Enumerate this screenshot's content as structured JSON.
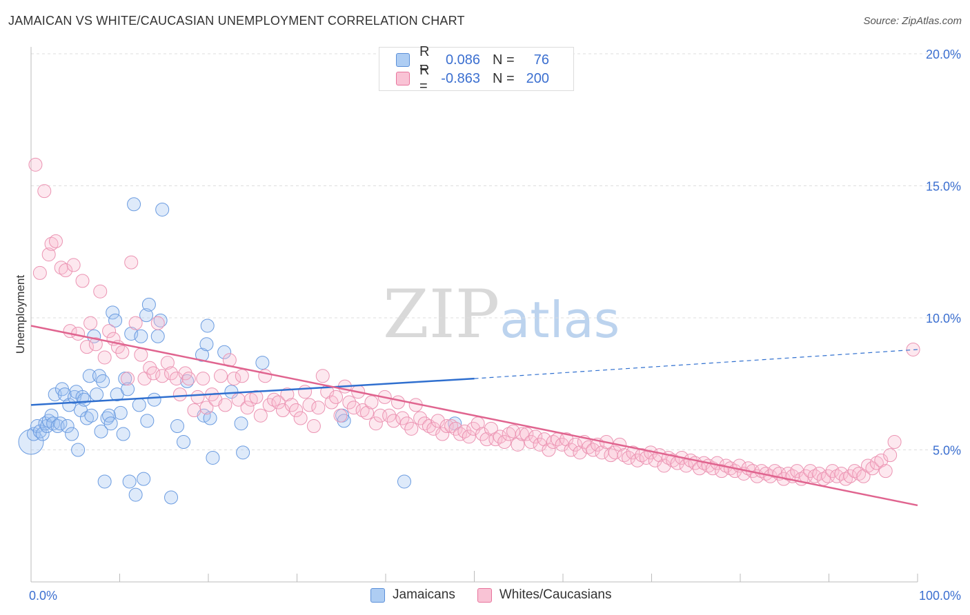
{
  "title": "JAMAICAN VS WHITE/CAUCASIAN UNEMPLOYMENT CORRELATION CHART",
  "source": "Source: ZipAtlas.com",
  "watermark": {
    "zip": "ZIP",
    "atlas": "atlas"
  },
  "legend": {
    "rows": [
      {
        "r_label": "R =",
        "r_value": "0.086",
        "n_label": "N =",
        "n_value": "76",
        "color": "#9ec3f2"
      },
      {
        "r_label": "R =",
        "r_value": "-0.863",
        "n_label": "N =",
        "n_value": "200",
        "color": "#f6b6cb"
      }
    ]
  },
  "bottom_legend": [
    {
      "label": "Jamaicans",
      "color": "#aecdf3"
    },
    {
      "label": "Whites/Caucasians",
      "color": "#f9c3d5"
    }
  ],
  "chart_data": {
    "type": "scatter",
    "title": "JAMAICAN VS WHITE/CAUCASIAN UNEMPLOYMENT CORRELATION CHART",
    "xlabel": "",
    "ylabel": "Unemployment",
    "xlim": [
      0,
      100
    ],
    "ylim": [
      0,
      21
    ],
    "x_tick_labels": [
      "0.0%",
      "100.0%"
    ],
    "y_ticks": [
      5,
      10,
      15,
      20
    ],
    "y_tick_labels": [
      "5.0%",
      "10.0%",
      "15.0%",
      "20.0%"
    ],
    "grid": true,
    "colors": {
      "jamaicans": "#4a86d8",
      "whites": "#e8739c"
    },
    "series": [
      {
        "name": "Jamaicans",
        "trend": {
          "x0": 0,
          "y0": 6.7,
          "x1": 50,
          "y1": 7.7,
          "dashed_to_x": 100,
          "dashed_to_y": 8.8
        },
        "points": [
          [
            0,
            5.3
          ],
          [
            0.3,
            5.6
          ],
          [
            0.7,
            5.9
          ],
          [
            1.0,
            5.7
          ],
          [
            1.3,
            5.6
          ],
          [
            1.6,
            6.0
          ],
          [
            1.8,
            5.9
          ],
          [
            2.0,
            6.1
          ],
          [
            2.3,
            6.3
          ],
          [
            2.5,
            6.0
          ],
          [
            2.7,
            7.1
          ],
          [
            3.0,
            5.9
          ],
          [
            3.3,
            6.0
          ],
          [
            3.5,
            7.3
          ],
          [
            3.8,
            7.1
          ],
          [
            4.1,
            5.9
          ],
          [
            4.3,
            6.7
          ],
          [
            4.6,
            5.6
          ],
          [
            4.9,
            7.0
          ],
          [
            5.1,
            7.2
          ],
          [
            5.3,
            5.0
          ],
          [
            5.6,
            6.5
          ],
          [
            5.8,
            7.0
          ],
          [
            6.0,
            6.9
          ],
          [
            6.3,
            6.2
          ],
          [
            6.6,
            7.8
          ],
          [
            6.8,
            6.3
          ],
          [
            7.1,
            9.3
          ],
          [
            7.4,
            7.1
          ],
          [
            7.7,
            7.8
          ],
          [
            7.9,
            5.7
          ],
          [
            8.1,
            7.6
          ],
          [
            8.3,
            3.8
          ],
          [
            8.6,
            6.2
          ],
          [
            8.8,
            6.3
          ],
          [
            9.0,
            6.0
          ],
          [
            9.2,
            10.2
          ],
          [
            9.5,
            9.9
          ],
          [
            9.7,
            7.1
          ],
          [
            10.1,
            6.4
          ],
          [
            10.4,
            5.6
          ],
          [
            10.6,
            7.7
          ],
          [
            10.9,
            7.3
          ],
          [
            11.1,
            3.8
          ],
          [
            11.3,
            9.4
          ],
          [
            11.6,
            14.3
          ],
          [
            11.8,
            3.3
          ],
          [
            12.2,
            6.7
          ],
          [
            12.4,
            9.3
          ],
          [
            12.7,
            3.9
          ],
          [
            13.1,
            6.1
          ],
          [
            13.0,
            10.1
          ],
          [
            13.3,
            10.5
          ],
          [
            13.9,
            6.9
          ],
          [
            14.3,
            9.3
          ],
          [
            14.6,
            9.9
          ],
          [
            14.8,
            14.1
          ],
          [
            15.8,
            3.2
          ],
          [
            16.5,
            5.9
          ],
          [
            17.2,
            5.3
          ],
          [
            17.6,
            7.6
          ],
          [
            19.3,
            8.6
          ],
          [
            19.5,
            6.3
          ],
          [
            19.8,
            9.0
          ],
          [
            19.9,
            9.7
          ],
          [
            20.2,
            6.2
          ],
          [
            20.5,
            4.7
          ],
          [
            21.8,
            8.7
          ],
          [
            22.6,
            7.2
          ],
          [
            23.7,
            6.0
          ],
          [
            23.9,
            4.9
          ],
          [
            26.1,
            8.3
          ],
          [
            35.1,
            6.3
          ],
          [
            35.3,
            6.1
          ],
          [
            42.1,
            3.8
          ],
          [
            47.8,
            6.0
          ]
        ]
      },
      {
        "name": "Whites/Caucasians",
        "trend": {
          "x0": 0,
          "y0": 9.7,
          "x1": 100,
          "y1": 2.9
        },
        "points": [
          [
            0.5,
            15.8
          ],
          [
            1.0,
            11.7
          ],
          [
            1.5,
            14.8
          ],
          [
            2.0,
            12.4
          ],
          [
            2.3,
            12.8
          ],
          [
            2.8,
            12.9
          ],
          [
            3.4,
            11.9
          ],
          [
            3.9,
            11.8
          ],
          [
            4.4,
            9.5
          ],
          [
            4.8,
            12.0
          ],
          [
            5.3,
            9.4
          ],
          [
            5.8,
            11.4
          ],
          [
            6.3,
            8.9
          ],
          [
            6.7,
            9.8
          ],
          [
            7.3,
            9.0
          ],
          [
            7.8,
            11.0
          ],
          [
            8.3,
            8.5
          ],
          [
            8.8,
            9.5
          ],
          [
            9.3,
            9.2
          ],
          [
            9.8,
            8.9
          ],
          [
            10.3,
            8.7
          ],
          [
            10.9,
            7.7
          ],
          [
            11.3,
            12.1
          ],
          [
            11.8,
            9.8
          ],
          [
            12.4,
            8.6
          ],
          [
            12.8,
            7.7
          ],
          [
            13.4,
            8.1
          ],
          [
            13.8,
            7.9
          ],
          [
            14.3,
            9.8
          ],
          [
            14.8,
            7.8
          ],
          [
            15.4,
            8.3
          ],
          [
            15.8,
            7.9
          ],
          [
            16.4,
            7.7
          ],
          [
            16.8,
            7.1
          ],
          [
            17.4,
            7.9
          ],
          [
            17.8,
            7.7
          ],
          [
            18.4,
            6.5
          ],
          [
            18.8,
            7.0
          ],
          [
            19.4,
            7.7
          ],
          [
            19.8,
            6.6
          ],
          [
            20.4,
            7.1
          ],
          [
            20.8,
            6.9
          ],
          [
            21.4,
            7.8
          ],
          [
            21.9,
            6.7
          ],
          [
            22.4,
            8.4
          ],
          [
            22.9,
            7.7
          ],
          [
            23.4,
            6.9
          ],
          [
            23.8,
            7.8
          ],
          [
            24.4,
            6.6
          ],
          [
            24.8,
            6.9
          ],
          [
            25.4,
            7.0
          ],
          [
            25.9,
            6.3
          ],
          [
            26.4,
            7.8
          ],
          [
            26.9,
            6.7
          ],
          [
            27.4,
            6.9
          ],
          [
            27.9,
            6.8
          ],
          [
            28.4,
            6.5
          ],
          [
            28.9,
            7.1
          ],
          [
            29.4,
            6.7
          ],
          [
            29.9,
            6.5
          ],
          [
            30.4,
            6.2
          ],
          [
            30.9,
            7.2
          ],
          [
            31.4,
            6.7
          ],
          [
            31.9,
            5.9
          ],
          [
            32.4,
            6.6
          ],
          [
            32.9,
            7.8
          ],
          [
            33.4,
            7.2
          ],
          [
            33.9,
            6.8
          ],
          [
            34.4,
            7.0
          ],
          [
            34.9,
            6.3
          ],
          [
            35.4,
            7.4
          ],
          [
            35.9,
            6.8
          ],
          [
            36.4,
            6.6
          ],
          [
            36.9,
            7.2
          ],
          [
            37.4,
            6.5
          ],
          [
            37.9,
            6.4
          ],
          [
            38.4,
            6.8
          ],
          [
            38.9,
            6.0
          ],
          [
            39.4,
            6.3
          ],
          [
            39.9,
            7.0
          ],
          [
            40.4,
            6.3
          ],
          [
            40.9,
            6.1
          ],
          [
            41.4,
            6.8
          ],
          [
            41.9,
            6.2
          ],
          [
            42.4,
            6.0
          ],
          [
            42.9,
            5.8
          ],
          [
            43.4,
            6.7
          ],
          [
            43.9,
            6.2
          ],
          [
            44.4,
            6.0
          ],
          [
            44.9,
            5.9
          ],
          [
            45.4,
            5.8
          ],
          [
            45.9,
            6.1
          ],
          [
            46.4,
            5.6
          ],
          [
            46.9,
            5.9
          ],
          [
            47.4,
            5.9
          ],
          [
            47.9,
            5.8
          ],
          [
            48.4,
            5.6
          ],
          [
            48.9,
            5.7
          ],
          [
            49.4,
            5.5
          ],
          [
            49.9,
            5.8
          ],
          [
            50.4,
            6.0
          ],
          [
            50.9,
            5.6
          ],
          [
            51.4,
            5.4
          ],
          [
            51.9,
            5.8
          ],
          [
            52.4,
            5.4
          ],
          [
            52.9,
            5.5
          ],
          [
            53.4,
            5.3
          ],
          [
            53.9,
            5.6
          ],
          [
            54.4,
            5.7
          ],
          [
            54.9,
            5.2
          ],
          [
            55.4,
            5.6
          ],
          [
            55.9,
            5.6
          ],
          [
            56.4,
            5.3
          ],
          [
            56.9,
            5.5
          ],
          [
            57.4,
            5.2
          ],
          [
            57.9,
            5.4
          ],
          [
            58.4,
            5.0
          ],
          [
            58.9,
            5.3
          ],
          [
            59.4,
            5.4
          ],
          [
            59.9,
            5.2
          ],
          [
            60.4,
            5.4
          ],
          [
            60.9,
            5.0
          ],
          [
            61.4,
            5.2
          ],
          [
            61.9,
            4.9
          ],
          [
            62.4,
            5.3
          ],
          [
            62.9,
            5.1
          ],
          [
            63.4,
            5.0
          ],
          [
            63.9,
            5.2
          ],
          [
            64.4,
            4.9
          ],
          [
            64.9,
            5.3
          ],
          [
            65.4,
            4.8
          ],
          [
            65.9,
            4.9
          ],
          [
            66.4,
            5.2
          ],
          [
            66.9,
            4.8
          ],
          [
            67.4,
            4.7
          ],
          [
            67.9,
            4.9
          ],
          [
            68.4,
            4.6
          ],
          [
            68.9,
            4.8
          ],
          [
            69.4,
            4.7
          ],
          [
            69.9,
            4.9
          ],
          [
            70.4,
            4.6
          ],
          [
            70.9,
            4.8
          ],
          [
            71.4,
            4.4
          ],
          [
            71.9,
            4.7
          ],
          [
            72.4,
            4.6
          ],
          [
            72.9,
            4.5
          ],
          [
            73.4,
            4.7
          ],
          [
            73.9,
            4.4
          ],
          [
            74.4,
            4.6
          ],
          [
            74.9,
            4.5
          ],
          [
            75.4,
            4.3
          ],
          [
            75.9,
            4.5
          ],
          [
            76.4,
            4.4
          ],
          [
            76.9,
            4.3
          ],
          [
            77.4,
            4.5
          ],
          [
            77.9,
            4.2
          ],
          [
            78.4,
            4.4
          ],
          [
            78.9,
            4.3
          ],
          [
            79.4,
            4.2
          ],
          [
            79.9,
            4.4
          ],
          [
            80.4,
            4.1
          ],
          [
            80.9,
            4.3
          ],
          [
            81.4,
            4.2
          ],
          [
            81.9,
            4.0
          ],
          [
            82.4,
            4.2
          ],
          [
            82.9,
            4.1
          ],
          [
            83.4,
            4.0
          ],
          [
            83.9,
            4.2
          ],
          [
            84.4,
            4.1
          ],
          [
            84.9,
            3.9
          ],
          [
            85.4,
            4.1
          ],
          [
            85.9,
            4.0
          ],
          [
            86.4,
            4.2
          ],
          [
            86.9,
            3.9
          ],
          [
            87.4,
            4.0
          ],
          [
            87.9,
            4.2
          ],
          [
            88.4,
            4.0
          ],
          [
            88.9,
            4.1
          ],
          [
            89.4,
            3.9
          ],
          [
            89.9,
            4.0
          ],
          [
            90.4,
            4.2
          ],
          [
            90.9,
            4.0
          ],
          [
            91.4,
            4.1
          ],
          [
            91.9,
            3.9
          ],
          [
            92.4,
            4.0
          ],
          [
            92.9,
            4.2
          ],
          [
            93.4,
            4.1
          ],
          [
            93.9,
            4.0
          ],
          [
            94.4,
            4.4
          ],
          [
            94.9,
            4.3
          ],
          [
            95.4,
            4.5
          ],
          [
            95.9,
            4.6
          ],
          [
            96.4,
            4.2
          ],
          [
            96.9,
            4.8
          ],
          [
            97.4,
            5.3
          ],
          [
            99.5,
            8.8
          ]
        ]
      }
    ]
  }
}
